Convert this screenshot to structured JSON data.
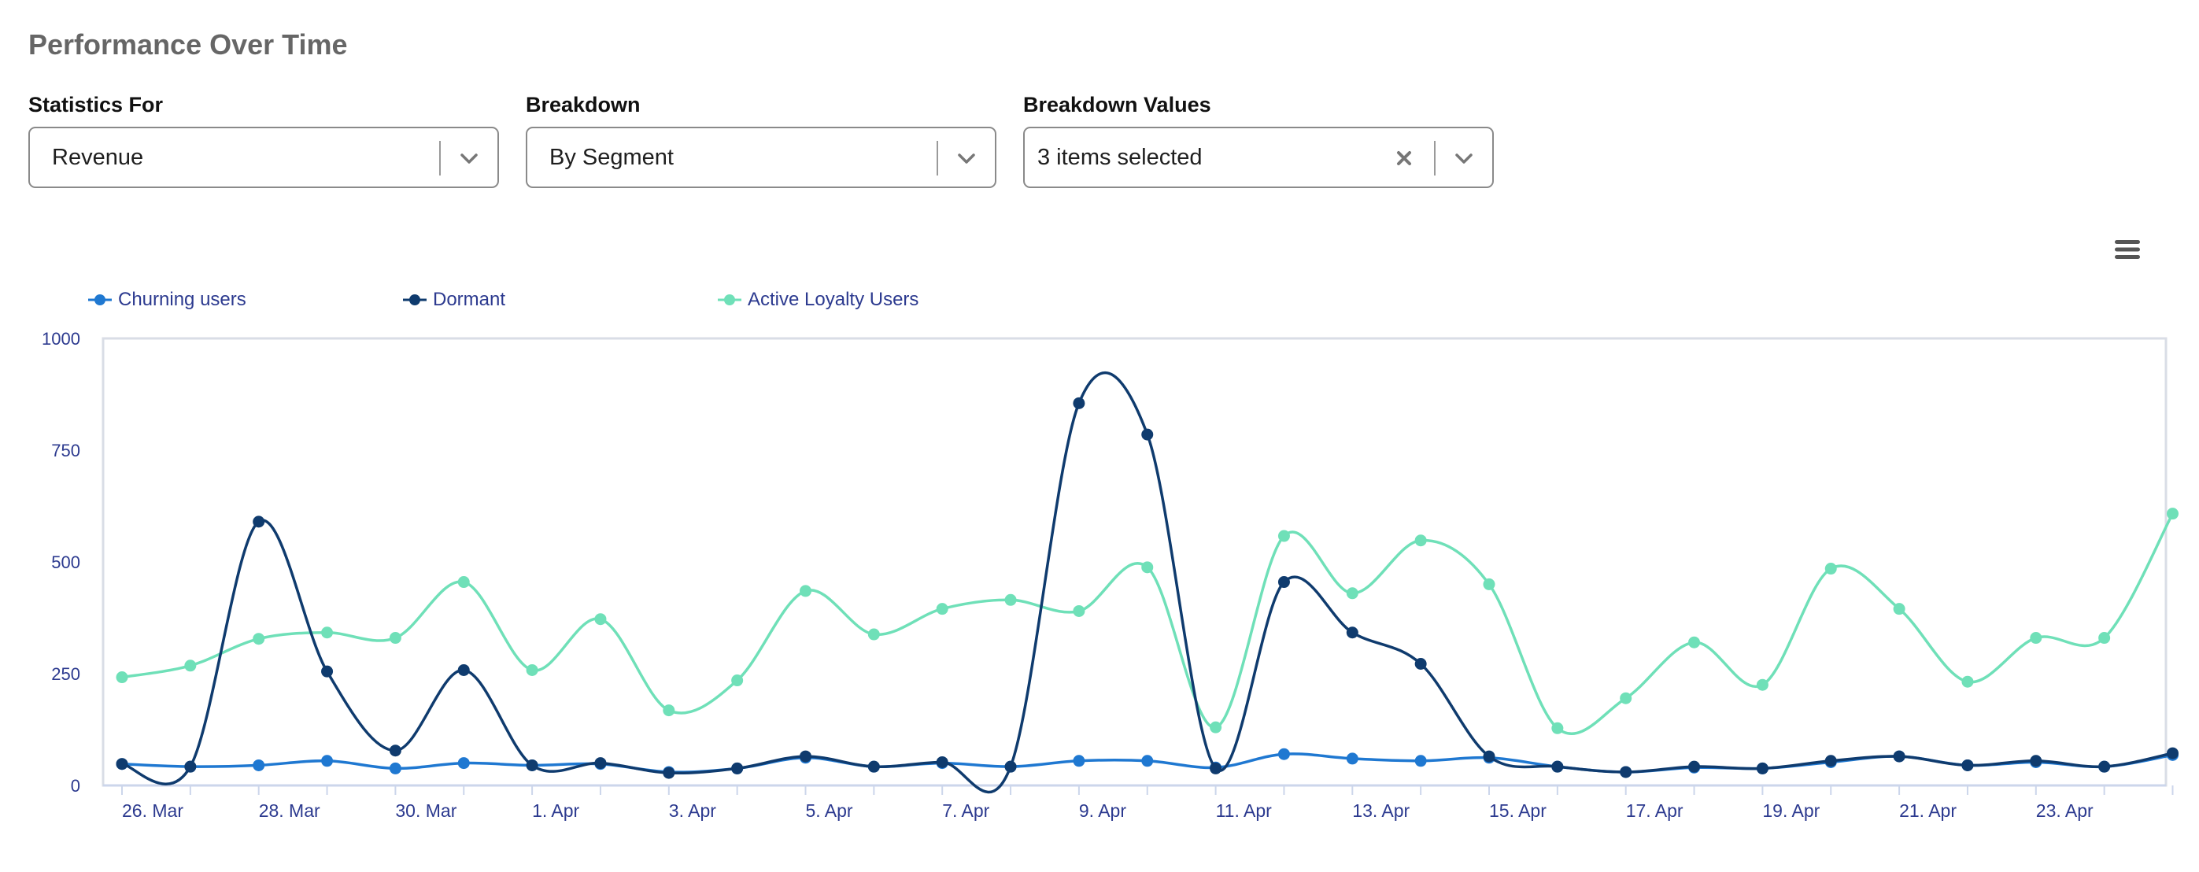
{
  "page": {
    "title": "Performance Over Time"
  },
  "filters": {
    "statistics_for": {
      "label": "Statistics For",
      "value": "Revenue"
    },
    "breakdown": {
      "label": "Breakdown",
      "value": "By Segment"
    },
    "breakdown_values": {
      "label": "Breakdown Values",
      "value": "3 items selected"
    }
  },
  "icons": {
    "chart_menu": "hamburger-menu-icon",
    "dropdown": "chevron-down-icon",
    "clear": "close-icon"
  },
  "colors": {
    "axis_text": "#2c3a8f",
    "plot_border": "#d9dde6"
  },
  "chart_data": {
    "type": "line",
    "x": [
      "26. Mar",
      "27. Mar",
      "28. Mar",
      "29. Mar",
      "30. Mar",
      "31. Mar",
      "1. Apr",
      "2. Apr",
      "3. Apr",
      "4. Apr",
      "5. Apr",
      "6. Apr",
      "7. Apr",
      "8. Apr",
      "9. Apr",
      "10. Apr",
      "11. Apr",
      "12. Apr",
      "13. Apr",
      "14. Apr",
      "15. Apr",
      "16. Apr",
      "17. Apr",
      "18. Apr",
      "19. Apr",
      "20. Apr",
      "21. Apr",
      "22. Apr",
      "23. Apr",
      "24. Apr",
      "25. Apr"
    ],
    "x_tick_labels": [
      "26. Mar",
      "28. Mar",
      "30. Mar",
      "1. Apr",
      "3. Apr",
      "5. Apr",
      "7. Apr",
      "9. Apr",
      "11. Apr",
      "13. Apr",
      "15. Apr",
      "17. Apr",
      "19. Apr",
      "21. Apr",
      "23. Apr"
    ],
    "y_ticks": [
      "0",
      "250",
      "500",
      "750",
      "1000"
    ],
    "ylim": [
      0,
      1000
    ],
    "grid": false,
    "legend_position": "top-left",
    "series": [
      {
        "name": "Churning users",
        "color": "#1f78d1",
        "values": [
          48,
          42,
          45,
          55,
          38,
          50,
          45,
          48,
          30,
          38,
          62,
          42,
          50,
          42,
          55,
          55,
          40,
          70,
          60,
          55,
          62,
          42,
          30,
          40,
          38,
          52,
          65,
          45,
          52,
          42,
          68
        ]
      },
      {
        "name": "Dormant",
        "color": "#0f3b6e",
        "values": [
          48,
          42,
          590,
          255,
          78,
          258,
          45,
          50,
          28,
          38,
          65,
          42,
          52,
          42,
          855,
          785,
          38,
          455,
          342,
          272,
          65,
          42,
          30,
          42,
          38,
          55,
          65,
          45,
          55,
          42,
          72
        ]
      },
      {
        "name": "Active Loyalty Users",
        "color": "#6fe0b8",
        "values": [
          242,
          268,
          328,
          342,
          330,
          455,
          258,
          372,
          168,
          235,
          435,
          338,
          395,
          415,
          390,
          488,
          130,
          558,
          430,
          548,
          450,
          128,
          195,
          320,
          225,
          485,
          395,
          232,
          330,
          330,
          608
        ]
      }
    ]
  }
}
